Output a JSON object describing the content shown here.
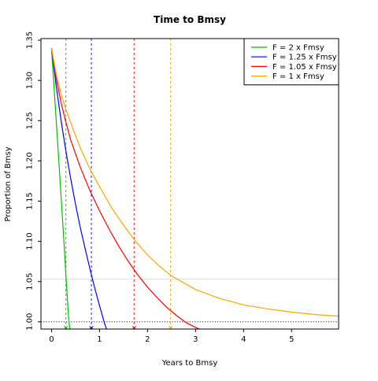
{
  "chart_data": {
    "type": "line",
    "title": "Time to Bmsy",
    "xlabel": "Years to Bmsy",
    "ylabel": "Proportion of Bmsy",
    "xlim": [
      -0.22,
      5.98
    ],
    "ylim": [
      0.991,
      1.352
    ],
    "xticks": [
      "0",
      "1",
      "2",
      "3",
      "4",
      "5"
    ],
    "yticks": [
      "1.00",
      "1.05",
      "1.10",
      "1.15",
      "1.20",
      "1.25",
      "1.30",
      "1.35"
    ],
    "legend_position": "top-right",
    "series": [
      {
        "name": "F = 2 x Fmsy",
        "color": "#00c000",
        "x": [
          0.0,
          0.05,
          0.1,
          0.15,
          0.2,
          0.25,
          0.3,
          0.35,
          0.38
        ],
        "y": [
          1.34,
          1.294,
          1.248,
          1.202,
          1.155,
          1.108,
          1.058,
          1.01,
          0.99
        ]
      },
      {
        "name": "F = 1.25 x Fmsy",
        "color": "#0000ff",
        "x": [
          0.0,
          0.1,
          0.2,
          0.3,
          0.4,
          0.5,
          0.6,
          0.7,
          0.8,
          0.9,
          1.0,
          1.1,
          1.15
        ],
        "y": [
          1.34,
          1.292,
          1.25,
          1.212,
          1.178,
          1.146,
          1.117,
          1.091,
          1.066,
          1.042,
          1.02,
          0.999,
          0.99
        ]
      },
      {
        "name": "F = 1.05 x Fmsy",
        "color": "#ff0000",
        "x": [
          0.0,
          0.1,
          0.2,
          0.3,
          0.4,
          0.6,
          0.8,
          1.0,
          1.2,
          1.4,
          1.6,
          1.8,
          2.0,
          2.2,
          2.4,
          2.6,
          2.8,
          3.0,
          3.12
        ],
        "y": [
          1.34,
          1.302,
          1.272,
          1.248,
          1.226,
          1.192,
          1.163,
          1.138,
          1.115,
          1.094,
          1.075,
          1.058,
          1.043,
          1.03,
          1.018,
          1.008,
          0.999,
          0.993,
          0.99
        ]
      },
      {
        "name": "F = 1 x Fmsy",
        "color": "#ffa500",
        "x": [
          0.0,
          0.1,
          0.2,
          0.3,
          0.4,
          0.6,
          0.8,
          1.0,
          1.25,
          1.5,
          1.75,
          2.0,
          2.25,
          2.5,
          3.0,
          3.5,
          4.0,
          4.5,
          5.0,
          5.5,
          5.98
        ],
        "y": [
          1.34,
          1.307,
          1.283,
          1.264,
          1.247,
          1.216,
          1.19,
          1.168,
          1.142,
          1.12,
          1.1,
          1.083,
          1.069,
          1.057,
          1.04,
          1.029,
          1.021,
          1.016,
          1.012,
          1.009,
          1.007
        ]
      }
    ],
    "vlines": [
      {
        "x": 0.3,
        "color": "#00c000"
      },
      {
        "x": 0.83,
        "color": "#0000ff"
      },
      {
        "x": 1.72,
        "color": "#ff0000"
      },
      {
        "x": 2.48,
        "color": "#ffa500"
      }
    ],
    "hlines": [
      {
        "y": 1.0,
        "color": "#000000",
        "style": "dotted"
      },
      {
        "y": 1.053,
        "color": "#dddddd",
        "style": "solid"
      }
    ]
  }
}
